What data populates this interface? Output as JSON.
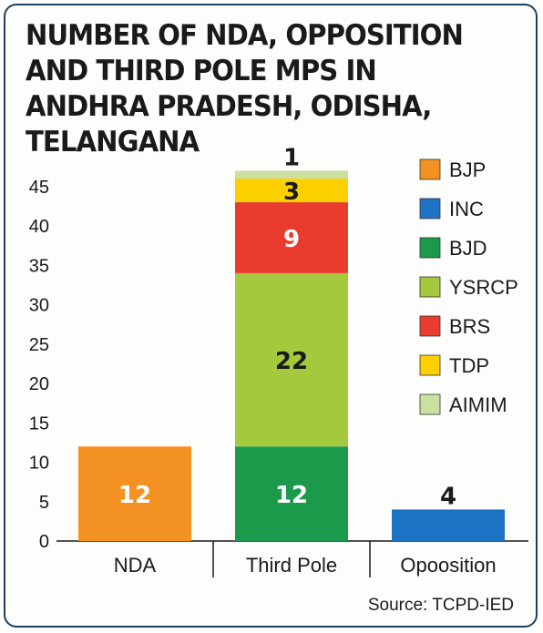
{
  "chart_data": {
    "type": "bar",
    "stacked": true,
    "title": "NUMBER OF NDA, OPPOSITION AND THIRD POLE MPS IN ANDHRA PRADESH, ODISHA, TELANGANA",
    "categories": [
      "NDA",
      "Third Pole",
      "Opoosition"
    ],
    "series": [
      {
        "name": "BJP",
        "color": "#f39122",
        "values": [
          12,
          0,
          0
        ]
      },
      {
        "name": "INC",
        "color": "#1d72c4",
        "values": [
          0,
          0,
          4
        ]
      },
      {
        "name": "BJD",
        "color": "#1b9a4b",
        "values": [
          0,
          12,
          0
        ]
      },
      {
        "name": "YSRCP",
        "color": "#a4c93d",
        "values": [
          0,
          22,
          0
        ]
      },
      {
        "name": "BRS",
        "color": "#ea3b2f",
        "values": [
          0,
          9,
          0
        ]
      },
      {
        "name": "TDP",
        "color": "#fdd000",
        "values": [
          0,
          3,
          0
        ]
      },
      {
        "name": "AIMIM",
        "color": "#c9e0a0",
        "values": [
          0,
          1,
          0
        ]
      }
    ],
    "data_labels": [
      {
        "category": "NDA",
        "series": "BJP",
        "text": "12",
        "color": "#ffffff"
      },
      {
        "category": "Third Pole",
        "series": "BJD",
        "text": "12",
        "color": "#ffffff"
      },
      {
        "category": "Third Pole",
        "series": "YSRCP",
        "text": "22",
        "color": "#1a1a1a"
      },
      {
        "category": "Third Pole",
        "series": "BRS",
        "text": "9",
        "color": "#ffffff"
      },
      {
        "category": "Third Pole",
        "series": "TDP",
        "text": "3",
        "color": "#1a1a1a"
      },
      {
        "category": "Third Pole",
        "series": "AIMIM",
        "text": "1",
        "color": "#1a1a1a",
        "position": "above"
      },
      {
        "category": "Opoosition",
        "series": "INC",
        "text": "4",
        "color": "#1a1a1a",
        "position": "above"
      }
    ],
    "yticks": [
      0,
      5,
      10,
      15,
      20,
      25,
      30,
      35,
      40,
      45
    ],
    "ylim": [
      0,
      47
    ],
    "xlabel": "",
    "ylabel": "",
    "grid": false,
    "legend": "top-right"
  },
  "source": "Source: TCPD-IED",
  "colors": {
    "frame_border": "#1f3f5c",
    "text": "#1a1a1a"
  }
}
